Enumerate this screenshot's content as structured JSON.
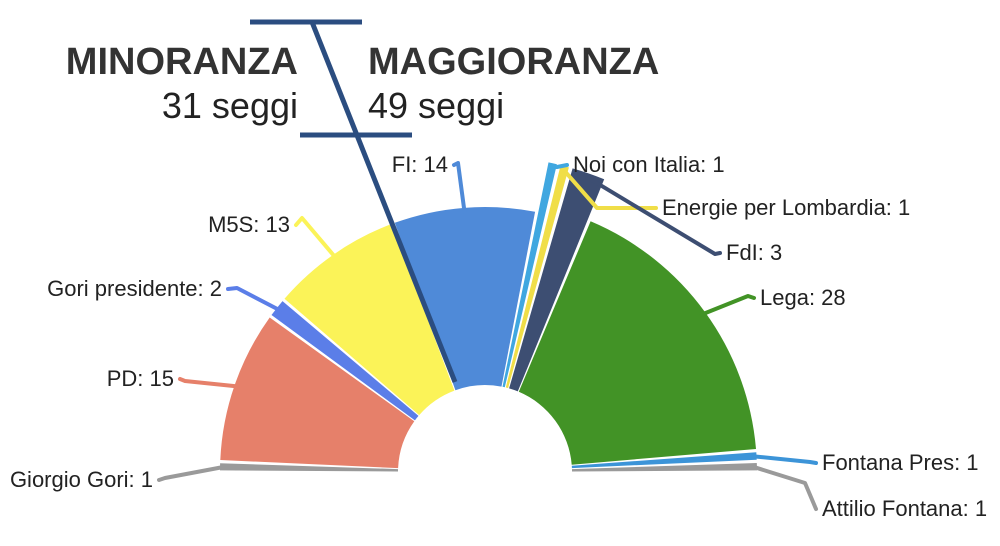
{
  "chart_data": {
    "type": "pie",
    "subtype": "semicircle-parliament",
    "total_seats": 80,
    "groups": [
      {
        "side": "minority",
        "title": "MINORANZA",
        "seats_label": "31 seggi",
        "seats": 31
      },
      {
        "side": "majority",
        "title": "MAGGIORANZA",
        "seats_label": "49 seggi",
        "seats": 49
      }
    ],
    "slices": [
      {
        "name": "Giorgio Gori",
        "label": "Giorgio Gori: 1",
        "value": 1,
        "color": "#9a9a9a",
        "side": "minority"
      },
      {
        "name": "PD",
        "label": "PD: 15",
        "value": 15,
        "color": "#e6806a",
        "side": "minority"
      },
      {
        "name": "Gori presidente",
        "label": "Gori presidente: 2",
        "value": 2,
        "color": "#5b7ee8",
        "side": "minority"
      },
      {
        "name": "M5S",
        "label": "M5S: 13",
        "value": 13,
        "color": "#fbf358",
        "side": "minority"
      },
      {
        "name": "FI",
        "label": "FI: 14",
        "value": 14,
        "color": "#4f8ad8",
        "side": "majority"
      },
      {
        "name": "Noi con Italia",
        "label": "Noi con Italia: 1",
        "value": 1,
        "color": "#40a7e0",
        "side": "majority"
      },
      {
        "name": "Energie per Lombardia",
        "label": "Energie per Lombardia: 1",
        "value": 1,
        "color": "#f0de48",
        "side": "majority"
      },
      {
        "name": "FdI",
        "label": "FdI: 3",
        "value": 3,
        "color": "#3d4e72",
        "side": "majority"
      },
      {
        "name": "Lega",
        "label": "Lega: 28",
        "value": 28,
        "color": "#429326",
        "side": "majority"
      },
      {
        "name": "Fontana Pres",
        "label": "Fontana Pres: 1",
        "value": 1,
        "color": "#3c94d8",
        "side": "majority"
      },
      {
        "name": "Attilio Fontana",
        "label": "Attilio Fontana: 1",
        "value": 1,
        "color": "#9a9a9a",
        "side": "majority"
      }
    ],
    "divider_color": "#2b4d80"
  }
}
